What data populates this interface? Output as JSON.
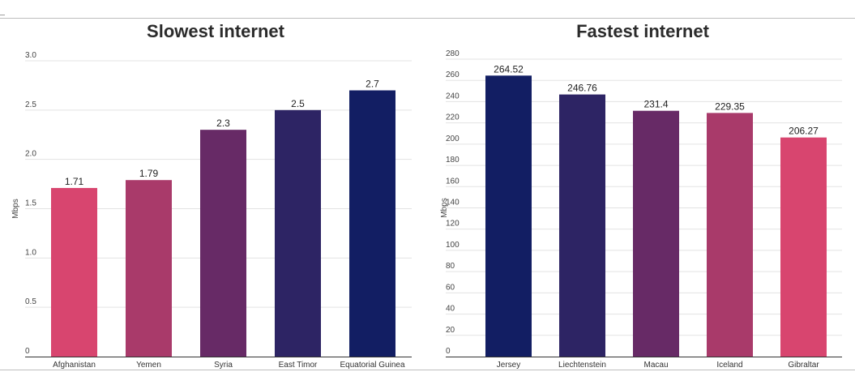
{
  "chart_data": [
    {
      "type": "bar",
      "title": "Slowest internet",
      "ylabel": "Mbps",
      "xlabel": "",
      "categories": [
        "Afghanistan",
        "Yemen",
        "Syria",
        "East Timor",
        "Equatorial Guinea"
      ],
      "values": [
        1.71,
        1.79,
        2.3,
        2.5,
        2.7
      ],
      "value_labels": [
        "1.71",
        "1.79",
        "2.3",
        "2.5",
        "2.7"
      ],
      "colors": [
        "#d8456f",
        "#a93a6a",
        "#672a66",
        "#2d2464",
        "#121e63"
      ],
      "ylim": [
        0,
        3.0
      ],
      "yticks": [
        0,
        0.5,
        1.0,
        1.5,
        2.0,
        2.5,
        3.0
      ],
      "ytick_labels": [
        "0",
        "0.5",
        "1.0",
        "1.5",
        "2.0",
        "2.5",
        "3.0"
      ],
      "grid": true
    },
    {
      "type": "bar",
      "title": "Fastest internet",
      "ylabel": "Mbps",
      "xlabel": "",
      "categories": [
        "Jersey",
        "Liechtenstein",
        "Macau",
        "Iceland",
        "Gibraltar"
      ],
      "values": [
        264.52,
        246.76,
        231.4,
        229.35,
        206.27
      ],
      "value_labels": [
        "264.52",
        "246.76",
        "231.4",
        "229.35",
        "206.27"
      ],
      "colors": [
        "#121e63",
        "#2d2464",
        "#672a66",
        "#a93a6a",
        "#d8456f"
      ],
      "ylim": [
        0,
        280
      ],
      "yticks": [
        0,
        20,
        40,
        60,
        80,
        100,
        120,
        140,
        160,
        180,
        200,
        220,
        240,
        260,
        280
      ],
      "ytick_labels": [
        "0",
        "20",
        "40",
        "60",
        "80",
        "100",
        "120",
        "140",
        "160",
        "180",
        "200",
        "220",
        "240",
        "260",
        "280"
      ],
      "grid": true
    }
  ]
}
